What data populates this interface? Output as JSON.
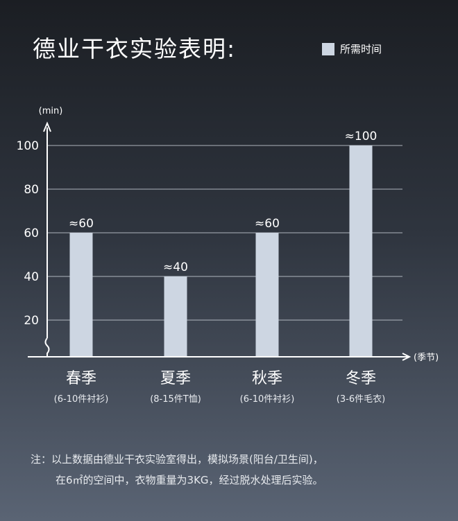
{
  "title": "德业干衣实验表明:",
  "legend": {
    "label": "所需时间"
  },
  "colors": {
    "bar": "#cdd6e2",
    "axis": "#ffffff",
    "grid": "#d0d6de"
  },
  "chart_data": {
    "type": "bar",
    "ylabel": "(min)",
    "xlabel": "(季节)",
    "ylim": [
      0,
      100
    ],
    "yticks": [
      20,
      40,
      60,
      80,
      100
    ],
    "categories": [
      "春季",
      "夏季",
      "秋季",
      "冬季"
    ],
    "sublabels": [
      "(6-10件衬衫)",
      "(8-15件T恤)",
      "(6-10件衬衫)",
      "(3-6件毛衣)"
    ],
    "values": [
      60,
      40,
      60,
      100
    ],
    "value_labels": [
      "≈60",
      "≈40",
      "≈60",
      "≈100"
    ],
    "series": [
      {
        "name": "所需时间",
        "values": [
          60,
          40,
          60,
          100
        ]
      }
    ],
    "grid": true,
    "axis_break": true
  },
  "note": {
    "line1": "注：以上数据由德业干衣实验室得出，模拟场景(阳台/卫生间)，",
    "line2": "在6㎡的空间中，衣物重量为3KG，经过脱水处理后实验。"
  }
}
